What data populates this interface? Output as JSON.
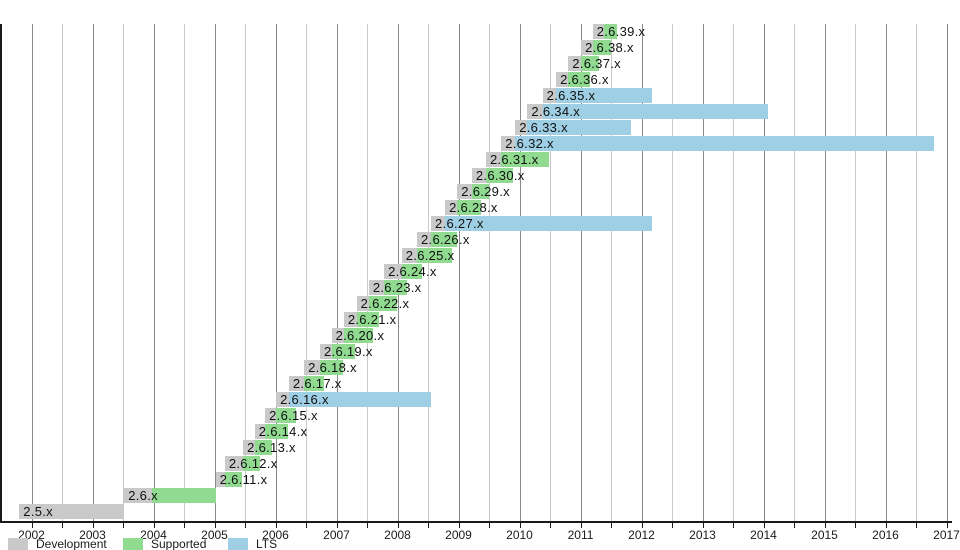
{
  "chart_data": {
    "type": "bar",
    "variant": "horizontal-gantt-timeline",
    "title": "",
    "xlabel": "",
    "ylabel": "",
    "x_axis": {
      "min": 2001.5,
      "max": 2017.1,
      "tick_years": [
        2002,
        2003,
        2004,
        2005,
        2006,
        2007,
        2008,
        2009,
        2010,
        2011,
        2012,
        2013,
        2014,
        2015,
        2016,
        2017
      ],
      "minor_grid_step": 0.5,
      "grid": true
    },
    "legend": [
      {
        "kind": "development",
        "label": "Development",
        "color": "#c9c9c9"
      },
      {
        "kind": "supported",
        "label": "Supported",
        "color": "#90db90"
      },
      {
        "kind": "lts",
        "label": "LTS",
        "color": "#9fcfe4"
      }
    ],
    "rows_bottom_to_top": [
      {
        "label": "2.5.x",
        "segments": [
          {
            "kind": "development",
            "start": 2001.8,
            "end": 2003.52
          }
        ]
      },
      {
        "label": "2.6.x",
        "segments": [
          {
            "kind": "development",
            "start": 2003.52,
            "end": 2003.97
          },
          {
            "kind": "supported",
            "start": 2003.97,
            "end": 2005.02
          }
        ]
      },
      {
        "label": "2.6.11.x",
        "segments": [
          {
            "kind": "development",
            "start": 2005.02,
            "end": 2005.17
          },
          {
            "kind": "supported",
            "start": 2005.17,
            "end": 2005.45
          }
        ]
      },
      {
        "label": "2.6.12.x",
        "segments": [
          {
            "kind": "development",
            "start": 2005.17,
            "end": 2005.47
          },
          {
            "kind": "supported",
            "start": 2005.47,
            "end": 2005.75
          }
        ]
      },
      {
        "label": "2.6.13.x",
        "segments": [
          {
            "kind": "development",
            "start": 2005.47,
            "end": 2005.66
          },
          {
            "kind": "supported",
            "start": 2005.66,
            "end": 2005.95
          }
        ]
      },
      {
        "label": "2.6.14.x",
        "segments": [
          {
            "kind": "development",
            "start": 2005.66,
            "end": 2005.83
          },
          {
            "kind": "supported",
            "start": 2005.83,
            "end": 2006.2
          }
        ]
      },
      {
        "label": "2.6.15.x",
        "segments": [
          {
            "kind": "development",
            "start": 2005.83,
            "end": 2006.01
          },
          {
            "kind": "supported",
            "start": 2006.01,
            "end": 2006.33
          }
        ]
      },
      {
        "label": "2.6.16.x",
        "segments": [
          {
            "kind": "development",
            "start": 2006.01,
            "end": 2006.22
          },
          {
            "kind": "lts",
            "start": 2006.22,
            "end": 2008.55
          }
        ]
      },
      {
        "label": "2.6.17.x",
        "segments": [
          {
            "kind": "development",
            "start": 2006.22,
            "end": 2006.47
          },
          {
            "kind": "supported",
            "start": 2006.47,
            "end": 2006.8
          }
        ]
      },
      {
        "label": "2.6.18.x",
        "segments": [
          {
            "kind": "development",
            "start": 2006.47,
            "end": 2006.73
          },
          {
            "kind": "supported",
            "start": 2006.73,
            "end": 2007.1
          }
        ]
      },
      {
        "label": "2.6.19.x",
        "segments": [
          {
            "kind": "development",
            "start": 2006.73,
            "end": 2006.92
          },
          {
            "kind": "supported",
            "start": 2006.92,
            "end": 2007.3
          }
        ]
      },
      {
        "label": "2.6.20.x",
        "segments": [
          {
            "kind": "development",
            "start": 2006.92,
            "end": 2007.12
          },
          {
            "kind": "supported",
            "start": 2007.12,
            "end": 2007.6
          }
        ]
      },
      {
        "label": "2.6.21.x",
        "segments": [
          {
            "kind": "development",
            "start": 2007.12,
            "end": 2007.33
          },
          {
            "kind": "supported",
            "start": 2007.33,
            "end": 2007.7
          }
        ]
      },
      {
        "label": "2.6.22.x",
        "segments": [
          {
            "kind": "development",
            "start": 2007.33,
            "end": 2007.53
          },
          {
            "kind": "supported",
            "start": 2007.53,
            "end": 2008.0
          }
        ]
      },
      {
        "label": "2.6.23.x",
        "segments": [
          {
            "kind": "development",
            "start": 2007.53,
            "end": 2007.78
          },
          {
            "kind": "supported",
            "start": 2007.78,
            "end": 2008.15
          }
        ]
      },
      {
        "label": "2.6.24.x",
        "segments": [
          {
            "kind": "development",
            "start": 2007.78,
            "end": 2008.07
          },
          {
            "kind": "supported",
            "start": 2008.07,
            "end": 2008.4
          }
        ]
      },
      {
        "label": "2.6.25.x",
        "segments": [
          {
            "kind": "development",
            "start": 2008.07,
            "end": 2008.32
          },
          {
            "kind": "supported",
            "start": 2008.32,
            "end": 2008.9
          }
        ]
      },
      {
        "label": "2.6.26.x",
        "segments": [
          {
            "kind": "development",
            "start": 2008.32,
            "end": 2008.55
          },
          {
            "kind": "supported",
            "start": 2008.55,
            "end": 2008.98
          }
        ]
      },
      {
        "label": "2.6.27.x",
        "segments": [
          {
            "kind": "development",
            "start": 2008.55,
            "end": 2008.78
          },
          {
            "kind": "lts",
            "start": 2008.78,
            "end": 2012.17
          }
        ]
      },
      {
        "label": "2.6.28.x",
        "segments": [
          {
            "kind": "development",
            "start": 2008.78,
            "end": 2008.98
          },
          {
            "kind": "supported",
            "start": 2008.98,
            "end": 2009.37
          }
        ]
      },
      {
        "label": "2.6.29.x",
        "segments": [
          {
            "kind": "development",
            "start": 2008.98,
            "end": 2009.22
          },
          {
            "kind": "supported",
            "start": 2009.22,
            "end": 2009.5
          }
        ]
      },
      {
        "label": "2.6.30.x",
        "segments": [
          {
            "kind": "development",
            "start": 2009.22,
            "end": 2009.45
          },
          {
            "kind": "supported",
            "start": 2009.45,
            "end": 2009.9
          }
        ]
      },
      {
        "label": "2.6.31.x",
        "segments": [
          {
            "kind": "development",
            "start": 2009.45,
            "end": 2009.7
          },
          {
            "kind": "supported",
            "start": 2009.7,
            "end": 2010.48
          }
        ]
      },
      {
        "label": "2.6.32.x",
        "segments": [
          {
            "kind": "development",
            "start": 2009.7,
            "end": 2009.93
          },
          {
            "kind": "lts",
            "start": 2009.93,
            "end": 2016.8
          }
        ]
      },
      {
        "label": "2.6.33.x",
        "segments": [
          {
            "kind": "development",
            "start": 2009.93,
            "end": 2010.13
          },
          {
            "kind": "lts",
            "start": 2010.13,
            "end": 2011.82
          }
        ]
      },
      {
        "label": "2.6.34.x",
        "segments": [
          {
            "kind": "development",
            "start": 2010.13,
            "end": 2010.38
          },
          {
            "kind": "lts",
            "start": 2010.38,
            "end": 2014.07
          }
        ]
      },
      {
        "label": "2.6.35.x",
        "segments": [
          {
            "kind": "development",
            "start": 2010.38,
            "end": 2010.6
          },
          {
            "kind": "lts",
            "start": 2010.6,
            "end": 2012.17
          }
        ]
      },
      {
        "label": "2.6.36.x",
        "segments": [
          {
            "kind": "development",
            "start": 2010.6,
            "end": 2010.8
          },
          {
            "kind": "supported",
            "start": 2010.8,
            "end": 2011.15
          }
        ]
      },
      {
        "label": "2.6.37.x",
        "segments": [
          {
            "kind": "development",
            "start": 2010.8,
            "end": 2011.01
          },
          {
            "kind": "supported",
            "start": 2011.01,
            "end": 2011.3
          }
        ]
      },
      {
        "label": "2.6.38.x",
        "segments": [
          {
            "kind": "development",
            "start": 2011.01,
            "end": 2011.2
          },
          {
            "kind": "supported",
            "start": 2011.2,
            "end": 2011.5
          }
        ]
      },
      {
        "label": "2.6.39.x",
        "segments": [
          {
            "kind": "development",
            "start": 2011.2,
            "end": 2011.38
          },
          {
            "kind": "supported",
            "start": 2011.38,
            "end": 2011.6
          }
        ]
      }
    ]
  }
}
